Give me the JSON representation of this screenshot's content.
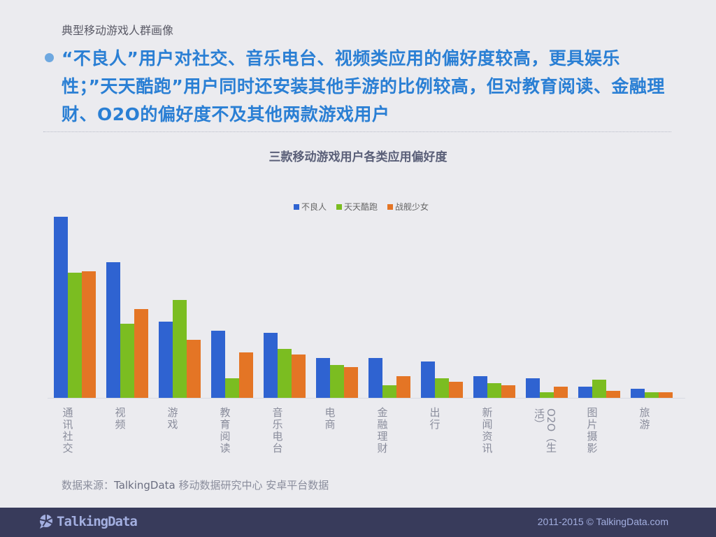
{
  "header": {
    "section_title": "典型移动游戏人群画像",
    "headline": "“不良人”用户对社交、音乐电台、视频类应用的偏好度较高，更具娱乐性；”天天酷跑”用户同时还安装其他手游的比例较高，但对教育阅读、金融理财、O2O的偏好度不及其他两款游戏用户"
  },
  "colors": {
    "series_1": "#2f63d1",
    "series_2": "#7bbd21",
    "series_3": "#e47525",
    "headline": "#2a7fd4",
    "footer_bg": "#383b5b"
  },
  "chart_data": {
    "type": "bar",
    "title": "三款移动游戏用户各类应用偏好度",
    "xlabel": "",
    "ylabel": "",
    "ylim": [
      0,
      100
    ],
    "grid": false,
    "legend_position": "top",
    "categories": [
      "通讯社交",
      "视频",
      "游戏",
      "教育阅读",
      "音乐电台",
      "电商",
      "金融理财",
      "出行",
      "新闻资讯",
      "O2O（生活）",
      "图片摄影",
      "旅游"
    ],
    "series": [
      {
        "name": "不良人",
        "color": "#2f63d1",
        "values": [
          100,
          75,
          42,
          37,
          36,
          22,
          22,
          20,
          12,
          11,
          6,
          5
        ]
      },
      {
        "name": "天天酷跑",
        "color": "#7bbd21",
        "values": [
          69,
          41,
          54,
          11,
          27,
          18,
          7,
          11,
          8,
          3,
          10,
          3
        ]
      },
      {
        "name": "战舰少女",
        "color": "#e47525",
        "values": [
          70,
          49,
          32,
          25,
          24,
          17,
          12,
          9,
          7,
          6,
          4,
          3
        ]
      }
    ]
  },
  "legend": {
    "items": [
      "不良人",
      "天天酷跑",
      "战舰少女"
    ]
  },
  "source": {
    "prefix": "数据来源：",
    "brand": "TalkingData",
    "suffix": " 移动数据研究中心 安卓平台数据"
  },
  "footer": {
    "logo_text": "TalkingData",
    "copyright": "2011-2015 © TalkingData.com"
  }
}
